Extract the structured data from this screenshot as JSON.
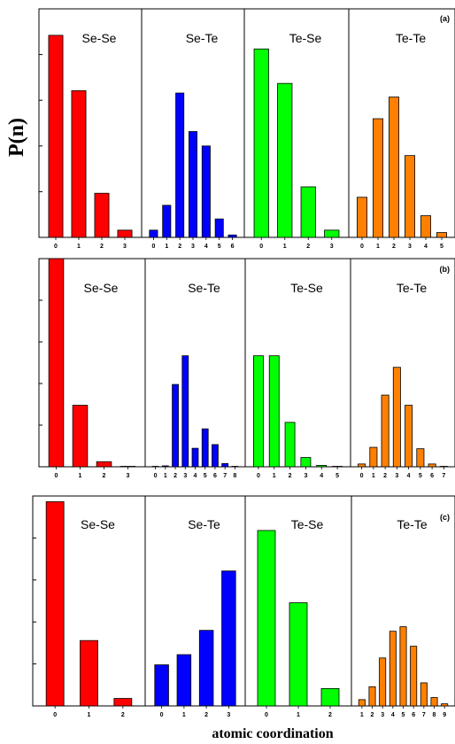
{
  "figure": {
    "ylabel": "P(n)",
    "xlabel": "atomic coordination"
  },
  "colors": {
    "Se-Se": "#ff0000",
    "Se-Te": "#0000ff",
    "Te-Se": "#00ff00",
    "Te-Te": "#ff8000"
  },
  "chart_data": [
    {
      "type": "bar",
      "label": "(a)",
      "panels": [
        {
          "title": "Se-Se",
          "categories": [
            "0",
            "1",
            "2",
            "3"
          ],
          "values": [
            0.252,
            0.183,
            0.055,
            0.009
          ]
        },
        {
          "title": "Se-Te",
          "categories": [
            "0",
            "1",
            "2",
            "3",
            "4",
            "5",
            "6"
          ],
          "values": [
            0.009,
            0.04,
            0.18,
            0.132,
            0.114,
            0.023,
            0.003
          ]
        },
        {
          "title": "Te-Se",
          "categories": [
            "0",
            "1",
            "2",
            "3"
          ],
          "values": [
            0.235,
            0.192,
            0.063,
            0.009
          ]
        },
        {
          "title": "Te-Te",
          "categories": [
            "0",
            "1",
            "2",
            "3",
            "4",
            "5"
          ],
          "values": [
            0.05,
            0.148,
            0.175,
            0.102,
            0.027,
            0.006
          ]
        }
      ]
    },
    {
      "type": "bar",
      "label": "(b)",
      "panels": [
        {
          "title": "Se-Se",
          "categories": [
            "0",
            "1",
            "2",
            "3"
          ],
          "values": [
            0.45,
            0.133,
            0.011,
            0.001
          ]
        },
        {
          "title": "Se-Te",
          "categories": [
            "0",
            "1",
            "2",
            "3",
            "4",
            "5",
            "6",
            "7",
            "8"
          ],
          "values": [
            0.001,
            0.002,
            0.178,
            0.24,
            0.04,
            0.082,
            0.048,
            0.007,
            0.001
          ]
        },
        {
          "title": "Te-Se",
          "categories": [
            "0",
            "1",
            "2",
            "3",
            "4",
            "5"
          ],
          "values": [
            0.24,
            0.24,
            0.096,
            0.02,
            0.003,
            0.001
          ]
        },
        {
          "title": "Te-Te",
          "categories": [
            "0",
            "1",
            "2",
            "3",
            "4",
            "5",
            "6",
            "7"
          ],
          "values": [
            0.006,
            0.042,
            0.155,
            0.215,
            0.133,
            0.039,
            0.006,
            0.001
          ]
        }
      ]
    },
    {
      "type": "bar",
      "label": "(c)",
      "panels": [
        {
          "title": "Se-Se",
          "categories": [
            "0",
            "1",
            "2"
          ],
          "values": [
            0.681,
            0.218,
            0.025
          ]
        },
        {
          "title": "Se-Te",
          "categories": [
            "0",
            "1",
            "2",
            "3"
          ],
          "values": [
            0.137,
            0.171,
            0.252,
            0.45
          ]
        },
        {
          "title": "Te-Se",
          "categories": [
            "0",
            "1",
            "2"
          ],
          "values": [
            0.585,
            0.344,
            0.058
          ]
        },
        {
          "title": "Te-Te",
          "categories": [
            "1",
            "2",
            "3",
            "4",
            "5",
            "6",
            "7",
            "8",
            "9"
          ],
          "values": [
            0.021,
            0.064,
            0.16,
            0.249,
            0.264,
            0.199,
            0.077,
            0.028,
            0.007
          ]
        }
      ]
    }
  ]
}
